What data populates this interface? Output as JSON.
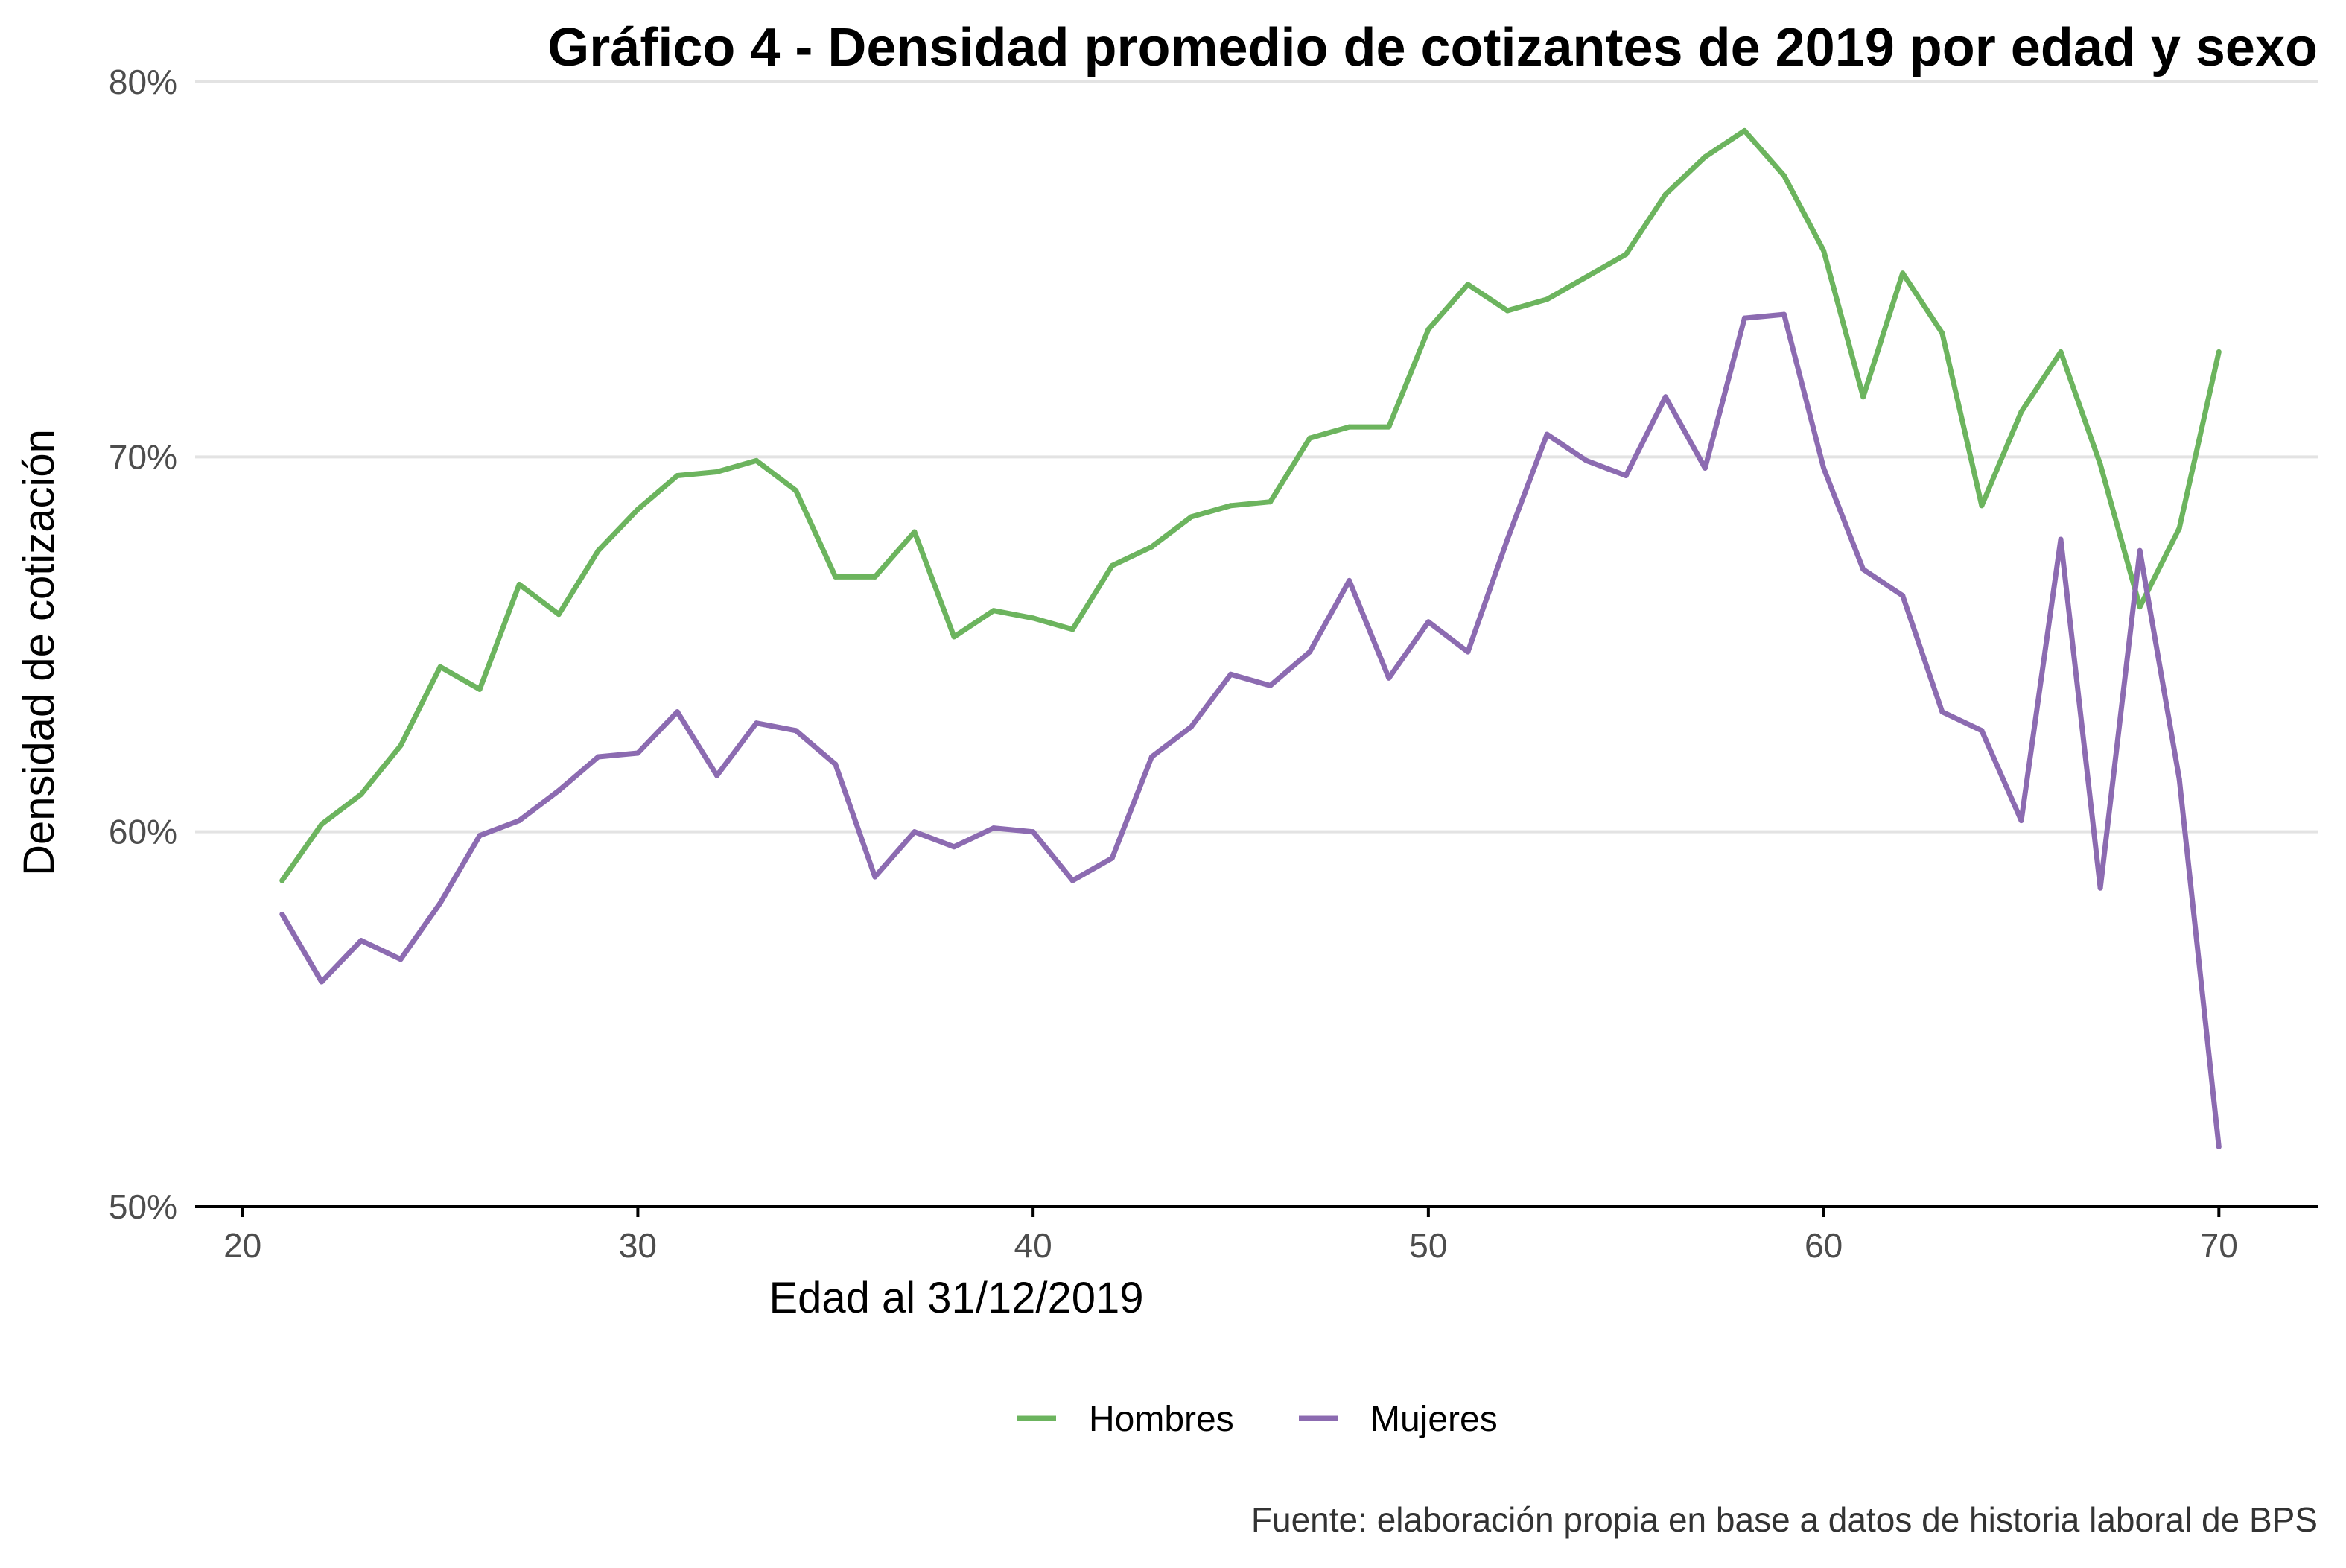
{
  "chart_data": {
    "type": "line",
    "title": "Gráfico 4 - Densidad promedio de cotizantes de 2019 por edad y sexo",
    "xlabel": "Edad al 31/12/2019",
    "ylabel": "Densidad de cotización",
    "caption": "Fuente: elaboración propia en base a datos de historia laboral de BPS",
    "xlim": [
      18.8,
      72.5
    ],
    "ylim": [
      50,
      80
    ],
    "x_ticks": [
      20,
      30,
      40,
      50,
      60,
      70
    ],
    "x_tick_labels": [
      "20",
      "30",
      "40",
      "50",
      "60",
      "70"
    ],
    "y_ticks": [
      50,
      60,
      70,
      80
    ],
    "y_tick_labels": [
      "50%",
      "60%",
      "70%",
      "80%"
    ],
    "grid": "horizontal major",
    "legend_position": "bottom",
    "x": [
      21,
      22,
      23,
      24,
      25,
      26,
      27,
      28,
      29,
      30,
      31,
      32,
      33,
      34,
      35,
      36,
      37,
      38,
      39,
      40,
      41,
      42,
      43,
      44,
      45,
      46,
      47,
      48,
      49,
      50,
      51,
      52,
      53,
      54,
      55,
      56,
      57,
      58,
      59,
      60,
      61,
      62,
      63,
      64,
      65,
      66,
      67,
      68,
      69,
      70
    ],
    "series": [
      {
        "name": "Hombres",
        "color": "#6cb45e",
        "values": [
          58.7,
          60.2,
          61.0,
          62.3,
          64.4,
          63.8,
          66.6,
          65.8,
          67.5,
          68.6,
          69.5,
          69.6,
          69.9,
          69.1,
          66.8,
          66.8,
          68.0,
          65.2,
          65.9,
          65.7,
          65.4,
          67.1,
          67.6,
          68.4,
          68.7,
          68.8,
          70.5,
          70.8,
          70.8,
          73.4,
          74.6,
          73.9,
          74.2,
          74.8,
          75.4,
          77.0,
          78.0,
          78.7,
          77.5,
          75.5,
          71.6,
          74.9,
          73.3,
          68.7,
          71.2,
          72.8,
          69.8,
          66.0,
          68.1,
          72.8
        ]
      },
      {
        "name": "Mujeres",
        "color": "#8c6bb1",
        "values": [
          57.8,
          56.0,
          57.1,
          56.6,
          58.1,
          59.9,
          60.3,
          61.1,
          62.0,
          62.1,
          63.2,
          61.5,
          62.9,
          62.7,
          61.8,
          58.8,
          60.0,
          59.6,
          60.1,
          60.0,
          58.7,
          59.3,
          62.0,
          62.8,
          64.2,
          63.9,
          64.8,
          66.7,
          64.1,
          65.6,
          64.8,
          67.8,
          70.6,
          69.9,
          69.5,
          71.6,
          69.7,
          73.7,
          73.8,
          69.7,
          67.0,
          66.3,
          63.2,
          62.7,
          60.3,
          67.8,
          58.5,
          67.5,
          61.4,
          51.6
        ]
      }
    ]
  }
}
